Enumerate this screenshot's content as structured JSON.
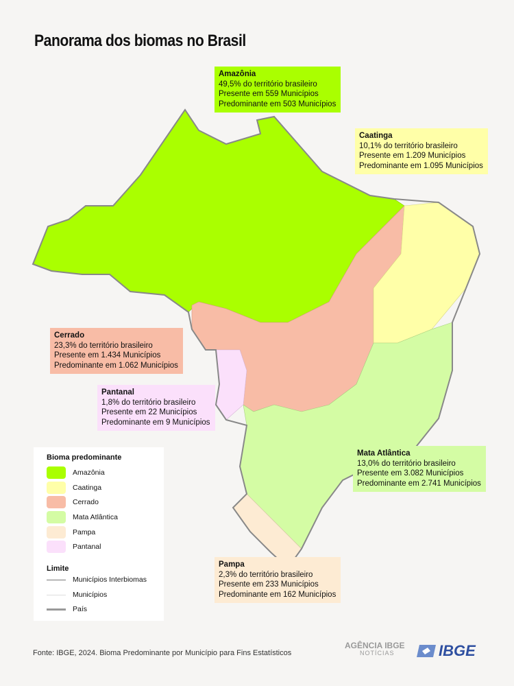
{
  "title": "Panorama dos biomas no Brasil",
  "colors": {
    "amazonia": "#aaff00",
    "caatinga": "#ffffa8",
    "cerrado": "#f8bca6",
    "mata_atlantica": "#d4fca4",
    "pampa": "#fdebd3",
    "pantanal": "#fbe0fb",
    "border": "#888888"
  },
  "biomes": {
    "amazonia": {
      "name": "Amazônia",
      "line1": "49,5% do território brasileiro",
      "line2": "Presente em 559 Municípios",
      "line3": "Predominante em 503 Municípios"
    },
    "caatinga": {
      "name": "Caatinga",
      "line1": "10,1% do território brasileiro",
      "line2": "Presente em 1.209 Municípios",
      "line3": "Predominante em 1.095 Municípios"
    },
    "cerrado": {
      "name": "Cerrado",
      "line1": "23,3% do território brasileiro",
      "line2": "Presente em 1.434 Municípios",
      "line3": "Predominante em 1.062 Municípios"
    },
    "pantanal": {
      "name": "Pantanal",
      "line1": "1,8% do território brasileiro",
      "line2": "Presente em 22 Municípios",
      "line3": "Predominante em 9 Municípios"
    },
    "mata_atlantica": {
      "name": "Mata Atlântica",
      "line1": "13,0% do território brasileiro",
      "line2": "Presente em 3.082 Municípios",
      "line3": "Predominante em 2.741 Municípios"
    },
    "pampa": {
      "name": "Pampa",
      "line1": "2,3% do território brasileiro",
      "line2": "Presente em 233 Municípios",
      "line3": "Predominante em 162 Municípios"
    }
  },
  "legend": {
    "title": "Bioma predominante",
    "items": [
      "Amazônia",
      "Caatinga",
      "Cerrado",
      "Mata Atlântica",
      "Pampa",
      "Pantanal"
    ],
    "limit_title": "Limite",
    "limits": [
      "Municípios Interbiomas",
      "Municípios",
      "País"
    ]
  },
  "footer": {
    "source": "Fonte: IBGE, 2024. Bioma Predominante por Município para Fins Estatísticos",
    "logo_agencia": "AGÊNCIA IBGE",
    "logo_noticias": "NOTÍCIAS",
    "logo_ibge": "IBGE"
  }
}
